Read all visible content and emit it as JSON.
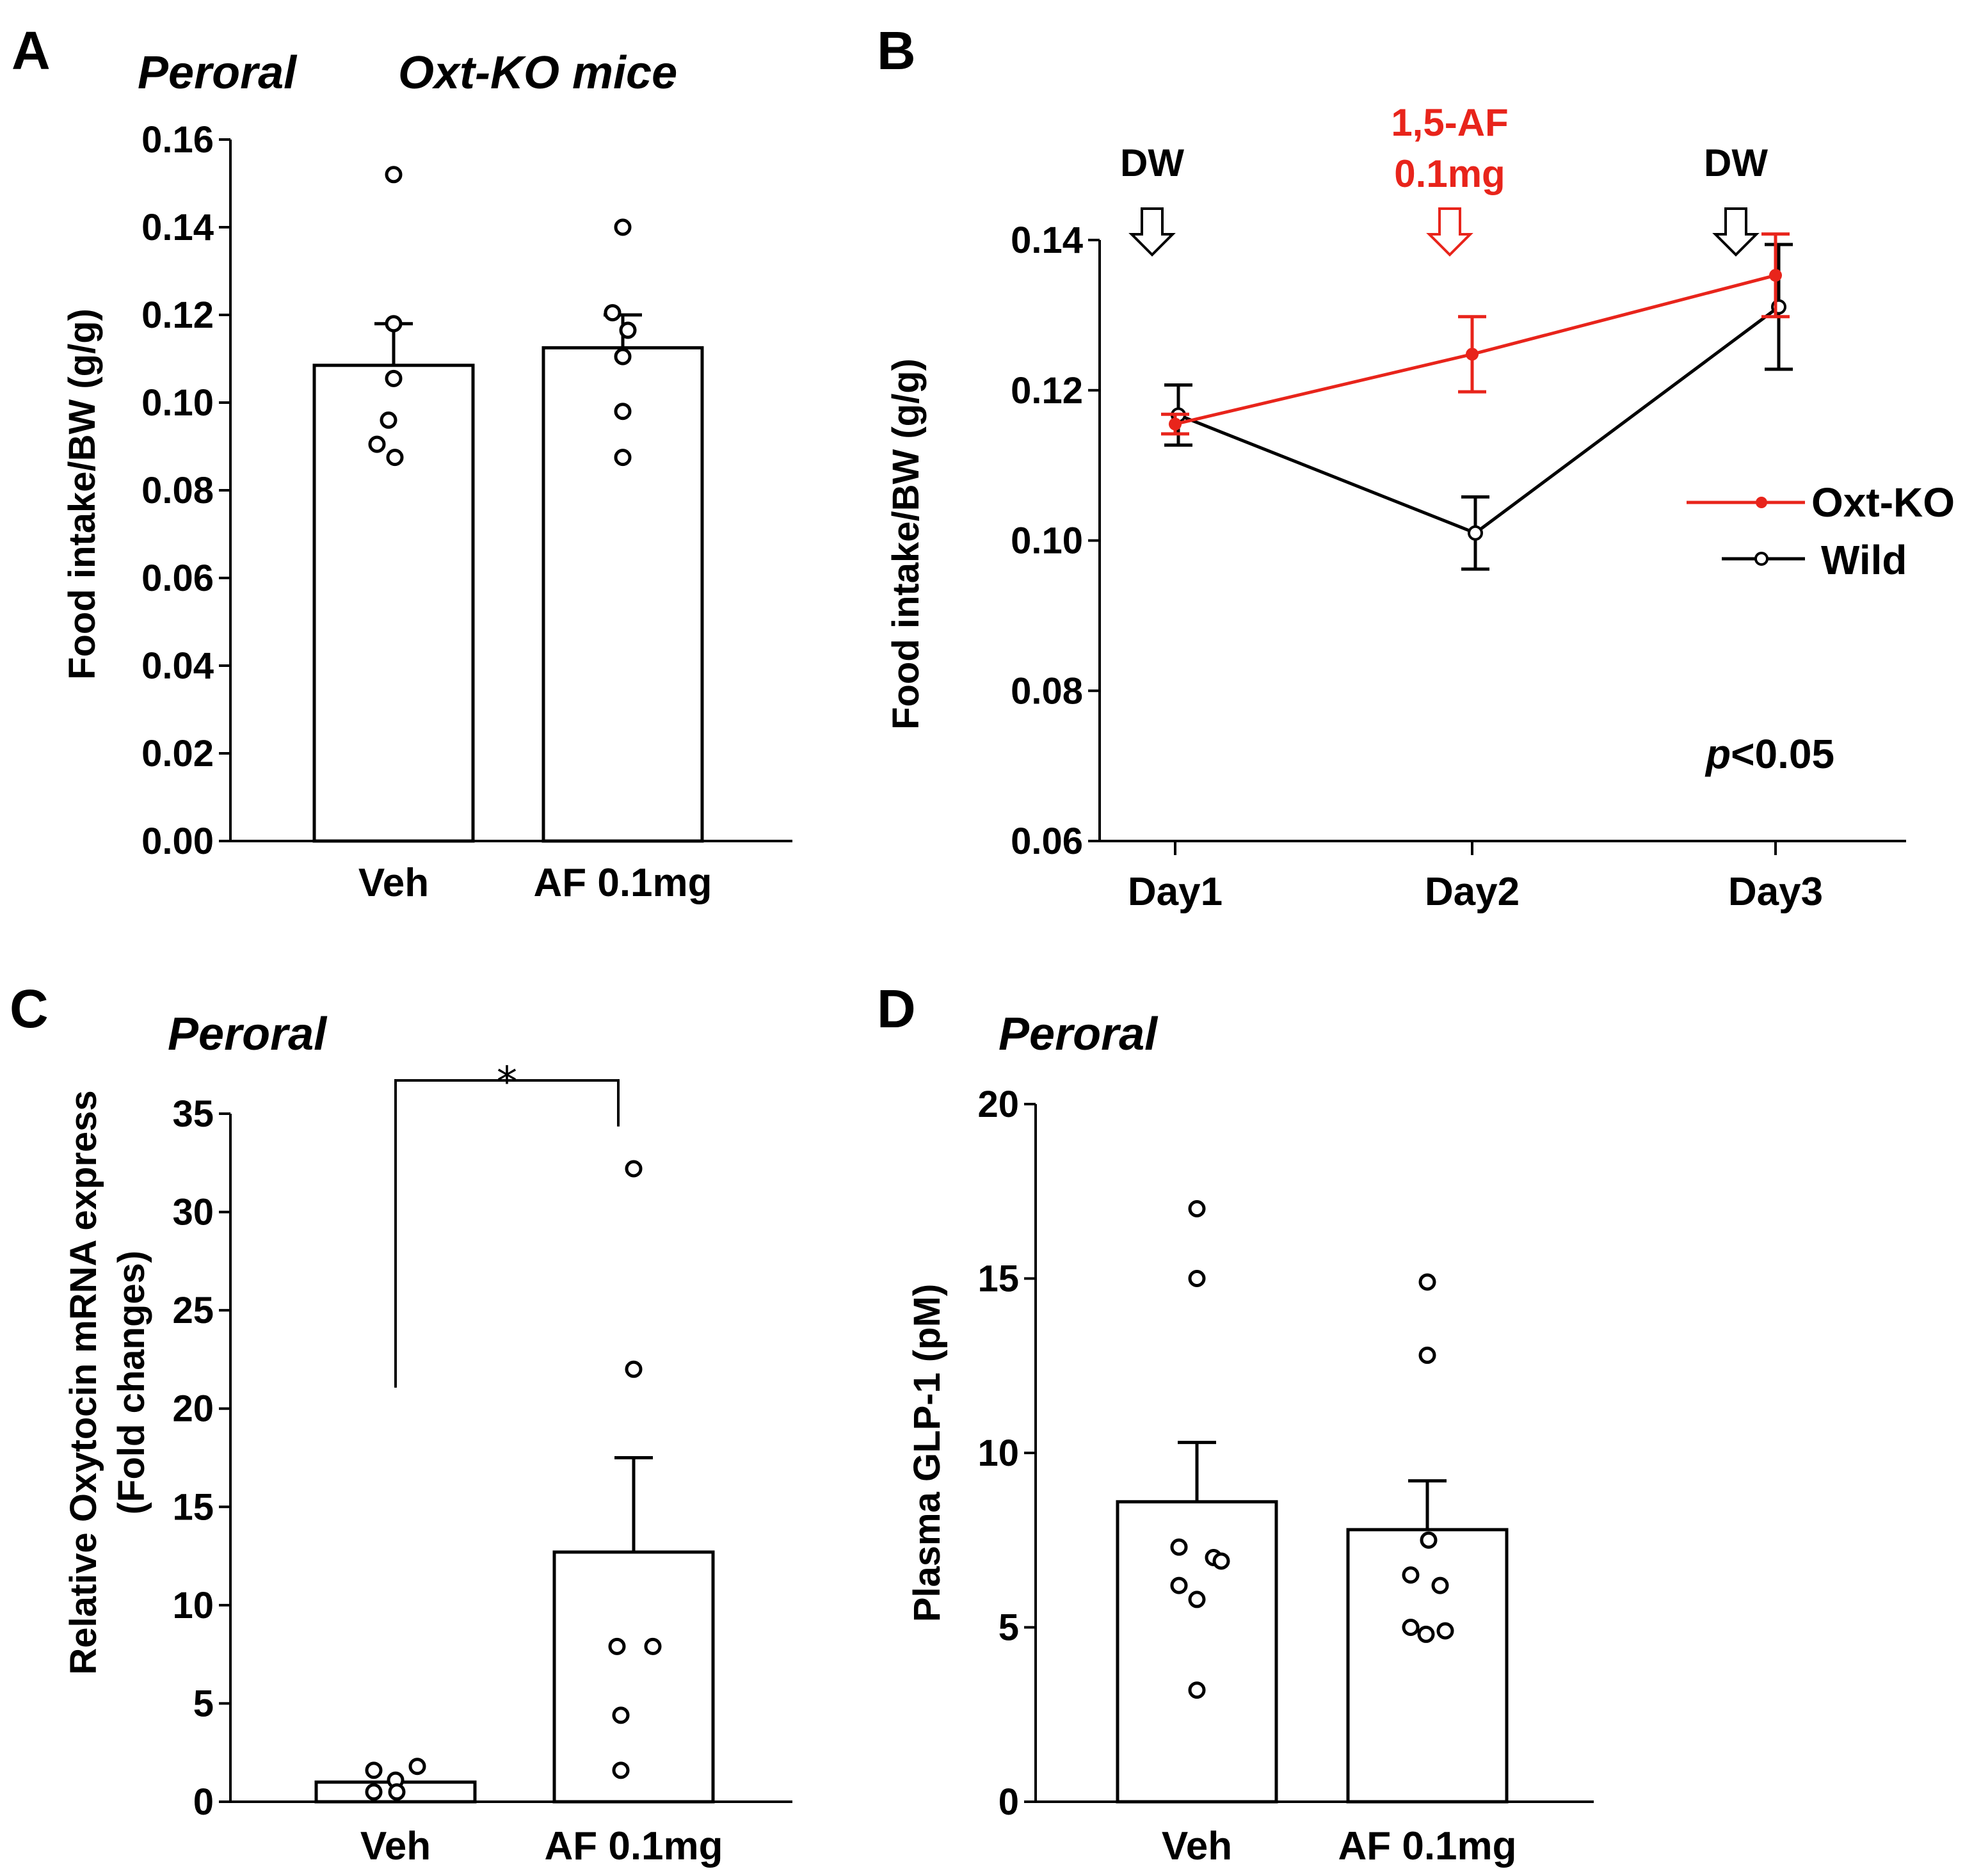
{
  "chart_data": [
    {
      "panel": "A",
      "type": "bar",
      "subtitles": [
        "Peroral",
        "Oxt-KO mice"
      ],
      "ylabel": "Food intake/BW (g/g)",
      "ylim": [
        0,
        0.16
      ],
      "yticks": [
        "0.00",
        "0.02",
        "0.04",
        "0.06",
        "0.08",
        "0.10",
        "0.12",
        "0.14",
        "0.16"
      ],
      "categories": [
        "Veh",
        "AF 0.1mg"
      ],
      "values": [
        0.1085,
        0.1125
      ],
      "errors": [
        0.0095,
        0.0075
      ],
      "points": [
        [
          0.152,
          0.118,
          0.1055,
          0.096,
          0.0905,
          0.0875
        ],
        [
          0.14,
          0.1205,
          0.1165,
          0.1105,
          0.098,
          0.0875
        ]
      ]
    },
    {
      "panel": "B",
      "type": "line",
      "ylabel": "Food intake/BW (g/g)",
      "ylim": [
        0.06,
        0.14
      ],
      "yticks": [
        "0.06",
        "0.08",
        "0.10",
        "0.12",
        "0.14"
      ],
      "x": [
        "Day1",
        "Day2",
        "Day3"
      ],
      "series": [
        {
          "name": "Oxt-KO",
          "color": "#e8241b",
          "marker": "filled",
          "values": [
            0.1155,
            0.1248,
            0.1353
          ],
          "errors": [
            0.0013,
            0.005,
            0.0055
          ]
        },
        {
          "name": "Wild",
          "color": "#000000",
          "marker": "open",
          "values": [
            0.1167,
            0.101,
            0.1311
          ],
          "errors": [
            0.004,
            0.0048,
            0.0083
          ]
        }
      ],
      "annotations": [
        {
          "day": "Day1",
          "label": "DW",
          "color": "#000000"
        },
        {
          "day": "Day2",
          "label_line1": "1,5-AF",
          "label_line2": "0.1mg",
          "color": "#e8241b"
        },
        {
          "day": "Day3",
          "label": "DW",
          "color": "#000000"
        }
      ],
      "stat_p": "p",
      "stat_rest": "<0.05"
    },
    {
      "panel": "C",
      "type": "bar",
      "subtitle": "Peroral",
      "ylabel_line1": "Relative Oxytocin mRNA express",
      "ylabel_line2": "(Fold changes)",
      "ylim": [
        0,
        35
      ],
      "yticks": [
        "0",
        "5",
        "10",
        "15",
        "20",
        "25",
        "30",
        "35"
      ],
      "categories": [
        "Veh",
        "AF 0.1mg"
      ],
      "values": [
        1.0,
        12.7
      ],
      "errors": [
        0.0,
        4.8
      ],
      "points": [
        [
          1.1,
          1.6,
          0.5,
          0.5,
          1.8
        ],
        [
          32.2,
          22.0,
          7.9,
          7.9,
          4.4,
          1.6
        ]
      ],
      "significance": "*"
    },
    {
      "panel": "D",
      "type": "bar",
      "subtitle": "Peroral",
      "ylabel": "Plasma GLP-1 (pM)",
      "ylim": [
        0,
        20
      ],
      "yticks": [
        "0",
        "5",
        "10",
        "15",
        "20"
      ],
      "categories": [
        "Veh",
        "AF 0.1mg"
      ],
      "values": [
        8.6,
        7.8
      ],
      "errors": [
        1.7,
        1.4
      ],
      "points": [
        [
          17.0,
          15.0,
          7.3,
          7.0,
          6.2,
          6.9,
          5.8,
          3.2
        ],
        [
          14.9,
          12.8,
          7.5,
          6.5,
          6.2,
          5.0,
          4.8,
          4.9
        ]
      ]
    }
  ]
}
